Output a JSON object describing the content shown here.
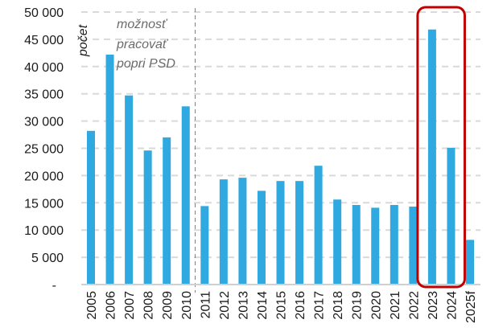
{
  "chart_data": {
    "type": "bar",
    "title": "",
    "xlabel": "",
    "ylabel": "počet",
    "ylim": [
      0,
      50000
    ],
    "yticks": [
      0,
      5000,
      10000,
      15000,
      20000,
      25000,
      30000,
      35000,
      40000,
      45000,
      50000
    ],
    "ytick_labels": [
      "-",
      "5 000",
      "10 000",
      "15 000",
      "20 000",
      "25 000",
      "30 000",
      "35 000",
      "40 000",
      "45 000",
      "50 000"
    ],
    "grid": true,
    "categories": [
      "2005",
      "2006",
      "2007",
      "2008",
      "2009",
      "2010",
      "2011",
      "2012",
      "2013",
      "2014",
      "2015",
      "2016",
      "2017",
      "2018",
      "2019",
      "2020",
      "2021",
      "2022",
      "2023",
      "2024",
      "2025f"
    ],
    "values": [
      28200,
      42200,
      34700,
      24600,
      27000,
      32700,
      14400,
      19300,
      19600,
      17200,
      19000,
      19000,
      21800,
      15600,
      14600,
      14100,
      14600,
      14300,
      46800,
      25100,
      8200
    ],
    "bar_color": "#2fa9df",
    "annotation": {
      "lines": [
        "možnosť",
        "pracovať",
        "popri PSD"
      ],
      "divider_between": [
        "2010",
        "2011"
      ]
    },
    "highlight": {
      "categories": [
        "2023",
        "2024"
      ],
      "color": "#c00000"
    }
  }
}
